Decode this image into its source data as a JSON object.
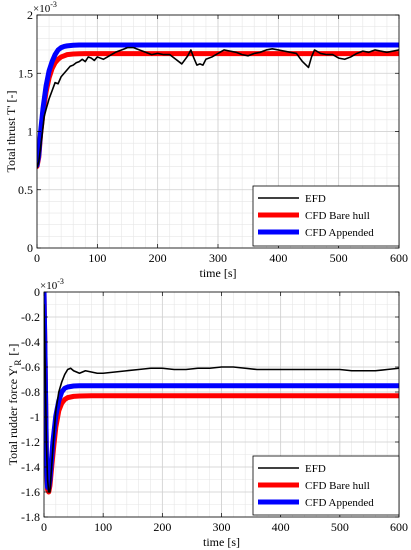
{
  "figure": {
    "panels": [
      {
        "ylabel": "Total thrust T' [-]",
        "xlabel": "time [s]",
        "exponent_label": "×10",
        "exponent_power": "-3",
        "legend_entries": [
          "EFD",
          "CFD Bare hull",
          "CFD Appended"
        ],
        "legend_position": "bottom-right"
      },
      {
        "ylabel_main": "Total rudder force Y'",
        "ylabel_sub": "R",
        "ylabel_tail": "[-]",
        "xlabel": "time [s]",
        "exponent_label": "×10",
        "exponent_power": "-3",
        "legend_entries": [
          "EFD",
          "CFD Bare hull",
          "CFD Appended"
        ],
        "legend_position": "bottom-right"
      }
    ]
  },
  "chart_data": [
    {
      "type": "line",
      "title": "",
      "xlabel": "time [s]",
      "ylabel": "Total thrust T' [-]",
      "y_scale_multiplier": "1e-3",
      "xlim": [
        0,
        600
      ],
      "ylim": [
        0,
        2
      ],
      "x_ticks": [
        0,
        100,
        200,
        300,
        400,
        500,
        600
      ],
      "x_tick_labels": [
        "0",
        "100",
        "200",
        "300",
        "400",
        "500",
        "600"
      ],
      "y_ticks": [
        0,
        0.5,
        1,
        1.5,
        2
      ],
      "y_tick_labels": [
        "0",
        "0.5",
        "1",
        "1.5",
        "2"
      ],
      "grid": true,
      "legend": "bottom-right",
      "series": [
        {
          "name": "EFD",
          "color": "#000000",
          "x": [
            0,
            3,
            8,
            12,
            15,
            20,
            25,
            30,
            35,
            40,
            45,
            50,
            55,
            60,
            65,
            70,
            75,
            80,
            85,
            90,
            95,
            100,
            110,
            120,
            130,
            140,
            150,
            160,
            170,
            180,
            190,
            200,
            210,
            220,
            230,
            240,
            250,
            255,
            260,
            265,
            270,
            275,
            280,
            290,
            300,
            310,
            320,
            330,
            340,
            350,
            360,
            370,
            380,
            390,
            400,
            410,
            420,
            430,
            440,
            450,
            455,
            460,
            470,
            480,
            490,
            500,
            510,
            520,
            530,
            540,
            550,
            560,
            570,
            580,
            590,
            600
          ],
          "y": [
            0.69,
            0.74,
            0.95,
            1.13,
            1.19,
            1.28,
            1.35,
            1.42,
            1.41,
            1.47,
            1.5,
            1.53,
            1.56,
            1.57,
            1.59,
            1.6,
            1.62,
            1.6,
            1.64,
            1.63,
            1.61,
            1.64,
            1.62,
            1.65,
            1.68,
            1.7,
            1.72,
            1.72,
            1.7,
            1.68,
            1.66,
            1.67,
            1.66,
            1.66,
            1.62,
            1.58,
            1.65,
            1.7,
            1.63,
            1.57,
            1.58,
            1.57,
            1.62,
            1.64,
            1.67,
            1.7,
            1.69,
            1.68,
            1.66,
            1.65,
            1.67,
            1.68,
            1.7,
            1.71,
            1.7,
            1.69,
            1.68,
            1.67,
            1.6,
            1.55,
            1.64,
            1.7,
            1.67,
            1.66,
            1.66,
            1.63,
            1.62,
            1.64,
            1.67,
            1.69,
            1.68,
            1.7,
            1.69,
            1.68,
            1.69,
            1.7
          ]
        },
        {
          "name": "CFD Bare hull",
          "color": "#ff0000",
          "x": [
            0,
            3,
            6,
            10,
            15,
            20,
            25,
            30,
            35,
            40,
            45,
            50,
            60,
            70,
            80,
            100,
            150,
            200,
            300,
            400,
            500,
            600
          ],
          "y": [
            0.7,
            0.78,
            0.98,
            1.16,
            1.34,
            1.46,
            1.54,
            1.59,
            1.62,
            1.64,
            1.65,
            1.66,
            1.665,
            1.667,
            1.668,
            1.668,
            1.668,
            1.668,
            1.668,
            1.668,
            1.668,
            1.668
          ]
        },
        {
          "name": "CFD Appended",
          "color": "#0000ff",
          "x": [
            0,
            3,
            6,
            10,
            15,
            20,
            25,
            30,
            35,
            40,
            45,
            50,
            60,
            70,
            80,
            100,
            150,
            200,
            300,
            400,
            500,
            600
          ],
          "y": [
            0.71,
            0.8,
            1.0,
            1.2,
            1.39,
            1.52,
            1.6,
            1.66,
            1.7,
            1.72,
            1.73,
            1.735,
            1.74,
            1.742,
            1.742,
            1.742,
            1.742,
            1.742,
            1.742,
            1.742,
            1.742,
            1.742
          ]
        }
      ]
    },
    {
      "type": "line",
      "title": "",
      "xlabel": "time [s]",
      "ylabel": "Total rudder force Y'R [-]",
      "y_scale_multiplier": "1e-3",
      "xlim": [
        0,
        600
      ],
      "ylim": [
        -1.8,
        0
      ],
      "x_ticks": [
        0,
        100,
        200,
        300,
        400,
        500,
        600
      ],
      "x_tick_labels": [
        "0",
        "100",
        "200",
        "300",
        "400",
        "500",
        "600"
      ],
      "y_ticks": [
        0,
        -0.2,
        -0.4,
        -0.6,
        -0.8,
        -1,
        -1.2,
        -1.4,
        -1.6,
        -1.8
      ],
      "y_tick_labels": [
        "0",
        "-0.2",
        "-0.4",
        "-0.6",
        "-0.8",
        "-1",
        "-1.2",
        "-1.4",
        "-1.6",
        "-1.8"
      ],
      "grid": true,
      "legend": "bottom-right",
      "series": [
        {
          "name": "EFD",
          "color": "#000000",
          "x": [
            0,
            2,
            4,
            6,
            8,
            10,
            15,
            20,
            25,
            30,
            35,
            40,
            45,
            50,
            60,
            70,
            80,
            90,
            100,
            120,
            140,
            160,
            180,
            200,
            220,
            240,
            260,
            280,
            300,
            320,
            340,
            360,
            380,
            400,
            420,
            440,
            460,
            480,
            500,
            520,
            540,
            560,
            580,
            600
          ],
          "y": [
            -0.1,
            -0.6,
            -1.2,
            -1.5,
            -1.6,
            -1.6,
            -1.25,
            -0.95,
            -0.8,
            -0.72,
            -0.66,
            -0.62,
            -0.61,
            -0.63,
            -0.65,
            -0.63,
            -0.64,
            -0.65,
            -0.65,
            -0.64,
            -0.63,
            -0.62,
            -0.61,
            -0.61,
            -0.62,
            -0.62,
            -0.61,
            -0.61,
            -0.6,
            -0.6,
            -0.61,
            -0.62,
            -0.62,
            -0.62,
            -0.62,
            -0.62,
            -0.62,
            -0.62,
            -0.62,
            -0.63,
            -0.63,
            -0.63,
            -0.62,
            -0.61
          ]
        },
        {
          "name": "CFD Bare hull",
          "color": "#ff0000",
          "x": [
            0,
            2,
            4,
            6,
            8,
            10,
            15,
            20,
            25,
            30,
            35,
            40,
            50,
            60,
            80,
            100,
            200,
            300,
            400,
            500,
            600
          ],
          "y": [
            0,
            -0.6,
            -1.3,
            -1.58,
            -1.6,
            -1.55,
            -1.3,
            -1.08,
            -0.95,
            -0.89,
            -0.86,
            -0.845,
            -0.835,
            -0.832,
            -0.83,
            -0.83,
            -0.83,
            -0.83,
            -0.83,
            -0.83,
            -0.83
          ]
        },
        {
          "name": "CFD Appended",
          "color": "#0000ff",
          "x": [
            0,
            2,
            4,
            6,
            8,
            10,
            15,
            20,
            25,
            30,
            35,
            40,
            50,
            60,
            80,
            100,
            200,
            300,
            400,
            500,
            600
          ],
          "y": [
            0,
            -0.6,
            -1.3,
            -1.56,
            -1.57,
            -1.5,
            -1.2,
            -0.99,
            -0.87,
            -0.8,
            -0.77,
            -0.76,
            -0.752,
            -0.75,
            -0.75,
            -0.75,
            -0.75,
            -0.75,
            -0.75,
            -0.75,
            -0.75
          ]
        }
      ]
    }
  ]
}
